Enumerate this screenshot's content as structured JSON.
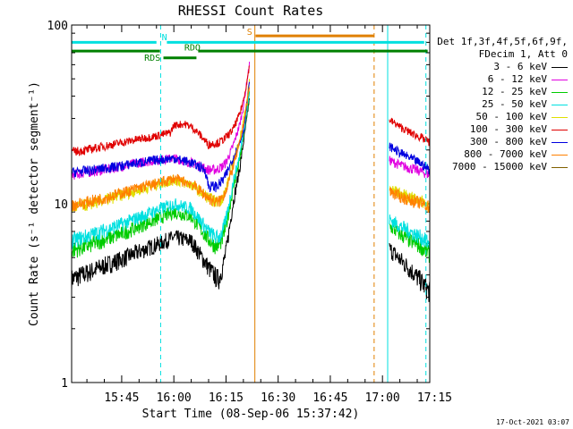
{
  "chart_data": {
    "type": "line",
    "title": "RHESSI Count Rates",
    "xlabel": "Start Time (08-Sep-06 15:37:42)",
    "ylabel": "Count Rate (s⁻¹ detector segment⁻¹)",
    "yscale": "log",
    "ylim": [
      1,
      100
    ],
    "xlim_minutes": [
      15.6,
      118.6
    ],
    "y_ticks": [
      "1",
      "10",
      "100"
    ],
    "x_ticks": [
      {
        "label": "15:45",
        "value": 30
      },
      {
        "label": "16:00",
        "value": 45
      },
      {
        "label": "16:15",
        "value": 60
      },
      {
        "label": "16:30",
        "value": 75
      },
      {
        "label": "16:45",
        "value": 90
      },
      {
        "label": "17:00",
        "value": 105
      },
      {
        "label": "17:15",
        "value": 120
      }
    ],
    "legend": {
      "header": [
        "Det 1f,3f,4f,5f,6f,9f,",
        "FDecim 1, Att 0"
      ],
      "placement": "right"
    },
    "series": [
      {
        "name": "3 - 6 keV",
        "color": "#000000",
        "segments": [
          {
            "x": [
              15.6,
              20,
              25,
              30,
              35,
              40,
              45,
              50,
              55,
              57,
              58,
              59,
              60,
              62,
              64,
              65,
              66,
              66.8
            ],
            "y": [
              3.8,
              4.1,
              4.5,
              4.9,
              5.4,
              5.9,
              6.5,
              6.2,
              4.4,
              3.9,
              3.8,
              4.4,
              5.4,
              10,
              16,
              22,
              30,
              40
            ]
          },
          {
            "x": [
              107,
              110,
              113,
              116,
              118.6
            ],
            "y": [
              5.6,
              4.9,
              4.3,
              3.7,
              3.2
            ]
          }
        ]
      },
      {
        "name": "6 - 12 keV",
        "color": "#e000e0",
        "segments": [
          {
            "x": [
              15.6,
              20,
              25,
              30,
              35,
              40,
              45,
              50,
              55,
              57,
              58,
              59,
              60,
              62,
              64,
              65,
              66,
              66.8
            ],
            "y": [
              14.5,
              15.0,
              15.5,
              16.2,
              17.0,
              17.5,
              18.0,
              17.0,
              15.5,
              15.5,
              15.8,
              16.2,
              17.0,
              21,
              28,
              35,
              48,
              62
            ]
          },
          {
            "x": [
              107,
              110,
              113,
              116,
              118.6
            ],
            "y": [
              17.5,
              16.5,
              15.8,
              15.2,
              14.5
            ]
          }
        ]
      },
      {
        "name": "12 - 25 keV",
        "color": "#00cc00",
        "segments": [
          {
            "x": [
              15.6,
              20,
              25,
              30,
              35,
              40,
              45,
              50,
              55,
              57,
              58,
              59,
              60,
              62,
              64,
              65,
              66,
              66.8
            ],
            "y": [
              5.5,
              5.8,
              6.3,
              6.8,
              7.5,
              8.2,
              9.0,
              8.5,
              6.3,
              5.8,
              5.9,
              6.4,
              7.5,
              12,
              18,
              24,
              32,
              42
            ]
          },
          {
            "x": [
              107,
              110,
              113,
              116,
              118.6
            ],
            "y": [
              7.5,
              6.8,
              6.2,
              5.8,
              5.2
            ]
          }
        ]
      },
      {
        "name": "25 - 50 keV",
        "color": "#00e0e0",
        "segments": [
          {
            "x": [
              15.6,
              20,
              25,
              30,
              35,
              40,
              45,
              50,
              55,
              57,
              58,
              59,
              60,
              62,
              64,
              65,
              66,
              66.8
            ],
            "y": [
              6.2,
              6.6,
              7.1,
              7.7,
              8.4,
              9.2,
              10.0,
              9.4,
              7.0,
              6.5,
              6.5,
              7.0,
              8.2,
              13,
              19,
              25,
              33,
              44
            ]
          },
          {
            "x": [
              107,
              110,
              113,
              116,
              118.6
            ],
            "y": [
              8.2,
              7.5,
              7.0,
              6.5,
              6.0
            ]
          }
        ]
      },
      {
        "name": "50 - 100 keV",
        "color": "#e0e000",
        "segments": [
          {
            "x": [
              15.6,
              20,
              25,
              30,
              35,
              40,
              45,
              50,
              55,
              57,
              58,
              59,
              60,
              62,
              64,
              65,
              66,
              66.8
            ],
            "y": [
              9.5,
              9.9,
              10.5,
              11.2,
              12.0,
              12.8,
              13.6,
              12.8,
              10.8,
              10.3,
              10.3,
              10.9,
              12.0,
              17,
              23,
              29,
              38,
              50
            ]
          },
          {
            "x": [
              107,
              110,
              113,
              116,
              118.6
            ],
            "y": [
              12.2,
              11.4,
              10.9,
              10.4,
              9.8
            ]
          }
        ]
      },
      {
        "name": "100 - 300 keV",
        "color": "#e00000",
        "segments": [
          {
            "x": [
              15.6,
              20,
              25,
              30,
              35,
              40,
              44,
              45,
              48,
              50,
              52,
              54,
              55,
              58,
              60,
              62,
              64,
              65,
              66,
              66.8
            ],
            "y": [
              19.5,
              20.0,
              21.0,
              22.0,
              23.0,
              24.0,
              25.0,
              27.5,
              28.0,
              27.0,
              25.0,
              22.5,
              21.5,
              22.0,
              23.5,
              26,
              32,
              38,
              48,
              60
            ]
          },
          {
            "x": [
              107,
              110,
              113,
              116,
              118.6
            ],
            "y": [
              29.5,
              27.0,
              25.0,
              23.5,
              22.0
            ]
          }
        ]
      },
      {
        "name": "300 - 800 keV",
        "color": "#0000e0",
        "segments": [
          {
            "x": [
              15.6,
              20,
              25,
              30,
              35,
              40,
              45,
              50,
              54,
              55,
              57,
              58,
              59,
              60,
              62,
              64,
              65,
              66,
              66.8
            ],
            "y": [
              15.0,
              15.3,
              15.8,
              16.3,
              17.0,
              17.6,
              18.0,
              17.0,
              15.5,
              12.5,
              12.5,
              12.8,
              13.5,
              14.5,
              18,
              22,
              26,
              36,
              48
            ]
          },
          {
            "x": [
              107,
              110,
              113,
              116,
              118.6
            ],
            "y": [
              21.0,
              19.3,
              18.0,
              16.8,
              15.5
            ]
          }
        ]
      },
      {
        "name": "800 - 7000 keV",
        "color": "#ff8000",
        "segments": [
          {
            "x": [
              15.6,
              20,
              25,
              30,
              35,
              40,
              45,
              50,
              55,
              57,
              58,
              59,
              60,
              62,
              64,
              65,
              66,
              66.8
            ],
            "y": [
              9.8,
              10.2,
              10.8,
              11.5,
              12.3,
              13.0,
              13.8,
              13.0,
              10.8,
              10.2,
              10.3,
              10.9,
              12.0,
              16,
              22,
              28,
              36,
              46
            ]
          },
          {
            "x": [
              107,
              110,
              113,
              116,
              118.6
            ],
            "y": [
              11.8,
              11.0,
              10.5,
              10.1,
              9.6
            ]
          }
        ]
      },
      {
        "name": "7000 - 15000 keV",
        "color": "#806000",
        "segments": []
      }
    ],
    "markers": [
      {
        "kind": "dashed-vline",
        "x": 41.2,
        "color": "#00e0e0"
      },
      {
        "kind": "solid-vline",
        "x": 15.6,
        "color": "#00e0e0"
      },
      {
        "kind": "solid-vline",
        "x": 106.5,
        "color": "#00e0e0"
      },
      {
        "kind": "dashed-vline",
        "x": 117.5,
        "color": "#00e0e0"
      },
      {
        "kind": "solid-vline",
        "x": 68.3,
        "color": "#e08000"
      },
      {
        "kind": "dashed-vline",
        "x": 102.6,
        "color": "#e08000"
      }
    ],
    "annotations": [
      {
        "label": "N",
        "color": "#00e0e0",
        "x": 41.5,
        "y": 82
      },
      {
        "label": "RDO",
        "color": "#008000",
        "x": 48.0,
        "y": 72
      },
      {
        "label": "RDS",
        "color": "#008000",
        "x": 36.5,
        "y": 63
      },
      {
        "label": "S",
        "color": "#e08000",
        "x": 66.0,
        "y": 88
      }
    ],
    "bars": [
      {
        "color": "#00e0e0",
        "x": [
          15.6,
          40.0
        ],
        "y": 80
      },
      {
        "color": "#00e0e0",
        "x": [
          43.0,
          117.0
        ],
        "y": 80
      },
      {
        "color": "#008000",
        "x": [
          15.6,
          41.0
        ],
        "y": 71.5
      },
      {
        "color": "#008000",
        "x": [
          52.0,
          118.0
        ],
        "y": 71.5
      },
      {
        "color": "#008000",
        "x": [
          42.0,
          51.5
        ],
        "y": 65.5
      },
      {
        "color": "#e08000",
        "x": [
          68.5,
          102.5
        ],
        "y": 87
      }
    ]
  },
  "timestamp": "17-Oct-2021 03:07"
}
